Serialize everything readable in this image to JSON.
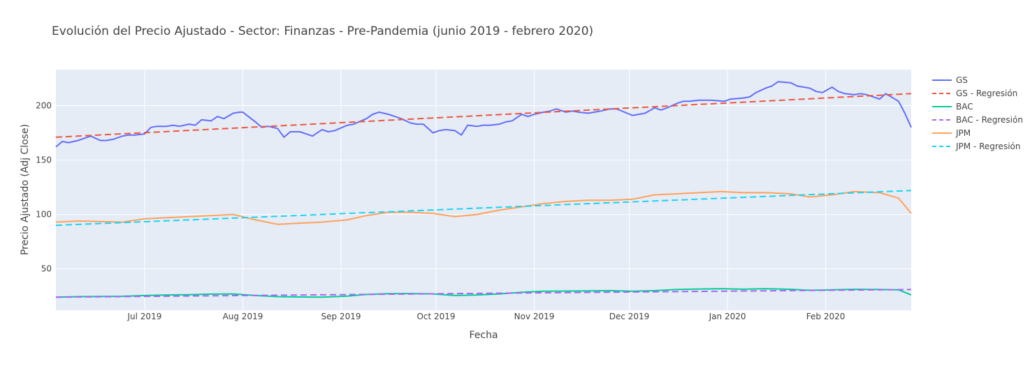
{
  "chart_data": {
    "type": "line",
    "title": "Evolución del Precio Ajustado - Sector: Finanzas - Pre-Pandemia (junio 2019 - febrero 2020)",
    "xlabel": "Fecha",
    "ylabel": "Precio Ajustado (Adj Close)",
    "xlim": [
      "2019-06-03",
      "2020-02-28"
    ],
    "ylim": [
      12,
      233
    ],
    "x_ticks": [
      {
        "date": "2019-07-01",
        "label": "Jul 2019"
      },
      {
        "date": "2019-08-01",
        "label": "Aug 2019"
      },
      {
        "date": "2019-09-01",
        "label": "Sep 2019"
      },
      {
        "date": "2019-10-01",
        "label": "Oct 2019"
      },
      {
        "date": "2019-11-01",
        "label": "Nov 2019"
      },
      {
        "date": "2019-12-01",
        "label": "Dec 2019"
      },
      {
        "date": "2020-01-01",
        "label": "Jan 2020"
      },
      {
        "date": "2020-02-01",
        "label": "Feb 2020"
      }
    ],
    "y_ticks": [
      50,
      100,
      150,
      200
    ],
    "grid": true,
    "legend_position": "right",
    "series": [
      {
        "name": "GS",
        "color": "#636efa",
        "dash": "solid",
        "x": [
          "2019-06-03",
          "2019-06-05",
          "2019-06-07",
          "2019-06-10",
          "2019-06-12",
          "2019-06-14",
          "2019-06-17",
          "2019-06-19",
          "2019-06-21",
          "2019-06-24",
          "2019-06-26",
          "2019-06-28",
          "2019-07-01",
          "2019-07-03",
          "2019-07-05",
          "2019-07-08",
          "2019-07-10",
          "2019-07-12",
          "2019-07-15",
          "2019-07-17",
          "2019-07-19",
          "2019-07-22",
          "2019-07-24",
          "2019-07-26",
          "2019-07-29",
          "2019-07-31",
          "2019-08-01",
          "2019-08-05",
          "2019-08-07",
          "2019-08-09",
          "2019-08-12",
          "2019-08-14",
          "2019-08-16",
          "2019-08-19",
          "2019-08-21",
          "2019-08-23",
          "2019-08-26",
          "2019-08-28",
          "2019-08-30",
          "2019-09-03",
          "2019-09-05",
          "2019-09-09",
          "2019-09-11",
          "2019-09-13",
          "2019-09-16",
          "2019-09-18",
          "2019-09-20",
          "2019-09-23",
          "2019-09-25",
          "2019-09-27",
          "2019-09-30",
          "2019-10-02",
          "2019-10-04",
          "2019-10-07",
          "2019-10-09",
          "2019-10-11",
          "2019-10-14",
          "2019-10-16",
          "2019-10-18",
          "2019-10-21",
          "2019-10-23",
          "2019-10-25",
          "2019-10-28",
          "2019-10-30",
          "2019-11-01",
          "2019-11-04",
          "2019-11-06",
          "2019-11-08",
          "2019-11-11",
          "2019-11-13",
          "2019-11-15",
          "2019-11-18",
          "2019-11-20",
          "2019-11-22",
          "2019-11-25",
          "2019-11-27",
          "2019-12-02",
          "2019-12-04",
          "2019-12-06",
          "2019-12-09",
          "2019-12-11",
          "2019-12-13",
          "2019-12-16",
          "2019-12-18",
          "2019-12-20",
          "2019-12-23",
          "2019-12-27",
          "2019-12-31",
          "2020-01-02",
          "2020-01-06",
          "2020-01-08",
          "2020-01-10",
          "2020-01-13",
          "2020-01-15",
          "2020-01-17",
          "2020-01-21",
          "2020-01-23",
          "2020-01-27",
          "2020-01-29",
          "2020-01-31",
          "2020-02-03",
          "2020-02-05",
          "2020-02-07",
          "2020-02-10",
          "2020-02-12",
          "2020-02-14",
          "2020-02-18",
          "2020-02-20",
          "2020-02-24",
          "2020-02-26",
          "2020-02-28"
        ],
        "values": [
          162,
          167,
          166,
          168,
          170,
          172,
          168,
          168,
          169,
          172,
          173,
          173,
          174,
          180,
          181,
          181,
          182,
          181,
          183,
          182,
          187,
          186,
          190,
          188,
          193,
          194,
          194,
          185,
          180,
          181,
          179,
          171,
          176,
          176,
          174,
          172,
          178,
          176,
          177,
          182,
          183,
          188,
          192,
          194,
          192,
          190,
          188,
          184,
          183,
          183,
          175,
          177,
          178,
          177,
          173,
          182,
          181,
          182,
          182,
          183,
          185,
          186,
          192,
          190,
          192,
          194,
          195,
          197,
          194,
          195,
          194,
          193,
          194,
          195,
          197,
          197,
          191,
          192,
          193,
          198,
          196,
          198,
          202,
          204,
          204,
          205,
          205,
          204,
          206,
          207,
          208,
          212,
          216,
          218,
          222,
          221,
          218,
          216,
          213,
          212,
          217,
          213,
          211,
          210,
          211,
          210,
          206,
          211,
          204,
          193,
          180
        ],
        "regression": [
          171,
          211
        ]
      },
      {
        "name": "GS - Regresión",
        "color": "#ef553b",
        "dash": "dash",
        "regression_of": "GS"
      },
      {
        "name": "BAC",
        "color": "#00cc96",
        "dash": "solid",
        "x": [
          "2019-06-03",
          "2019-06-10",
          "2019-06-17",
          "2019-06-24",
          "2019-07-01",
          "2019-07-08",
          "2019-07-15",
          "2019-07-22",
          "2019-07-29",
          "2019-08-05",
          "2019-08-12",
          "2019-08-19",
          "2019-08-26",
          "2019-09-03",
          "2019-09-09",
          "2019-09-16",
          "2019-09-23",
          "2019-09-30",
          "2019-10-07",
          "2019-10-14",
          "2019-10-21",
          "2019-10-28",
          "2019-11-04",
          "2019-11-11",
          "2019-11-18",
          "2019-11-25",
          "2019-12-02",
          "2019-12-09",
          "2019-12-16",
          "2019-12-23",
          "2019-12-30",
          "2020-01-06",
          "2020-01-13",
          "2020-01-21",
          "2020-01-27",
          "2020-02-03",
          "2020-02-10",
          "2020-02-18",
          "2020-02-24",
          "2020-02-28"
        ],
        "values": [
          24,
          24.5,
          24.6,
          24.8,
          25.5,
          26,
          26.3,
          26.8,
          27,
          25.5,
          24.5,
          24.2,
          24,
          25,
          26.5,
          27.2,
          27.3,
          27,
          25.5,
          26,
          27,
          28.5,
          29.5,
          29.6,
          29.8,
          30,
          29.5,
          30,
          31,
          31.5,
          31.8,
          31.3,
          31.8,
          31.2,
          30.3,
          30.8,
          31.2,
          31,
          30.8,
          26
        ]
      },
      {
        "name": "BAC - Regresión",
        "color": "#ab63fa",
        "dash": "dash",
        "regression_of": "BAC",
        "regression": [
          24,
          31
        ]
      },
      {
        "name": "JPM",
        "color": "#ffa15a",
        "dash": "solid",
        "x": [
          "2019-06-03",
          "2019-06-10",
          "2019-06-17",
          "2019-06-24",
          "2019-07-01",
          "2019-07-08",
          "2019-07-15",
          "2019-07-22",
          "2019-07-29",
          "2019-08-05",
          "2019-08-12",
          "2019-08-19",
          "2019-08-26",
          "2019-09-03",
          "2019-09-09",
          "2019-09-16",
          "2019-09-23",
          "2019-09-30",
          "2019-10-07",
          "2019-10-14",
          "2019-10-21",
          "2019-10-28",
          "2019-11-04",
          "2019-11-11",
          "2019-11-18",
          "2019-11-25",
          "2019-12-02",
          "2019-12-09",
          "2019-12-16",
          "2019-12-23",
          "2019-12-30",
          "2020-01-06",
          "2020-01-13",
          "2020-01-21",
          "2020-01-27",
          "2020-02-03",
          "2020-02-10",
          "2020-02-18",
          "2020-02-24",
          "2020-02-28"
        ],
        "values": [
          93,
          94,
          93.5,
          93,
          96,
          97,
          98,
          99,
          100,
          95,
          91,
          92,
          93,
          95,
          99,
          102,
          102,
          101,
          98,
          100,
          104,
          107,
          110,
          112,
          113,
          113,
          114,
          118,
          119,
          120,
          121,
          120,
          120,
          119,
          116,
          118,
          121,
          120,
          115,
          101
        ],
        "regression": [
          90,
          122
        ]
      },
      {
        "name": "JPM - Regresión",
        "color": "#19d3f3",
        "dash": "dash",
        "regression_of": "JPM"
      }
    ]
  }
}
